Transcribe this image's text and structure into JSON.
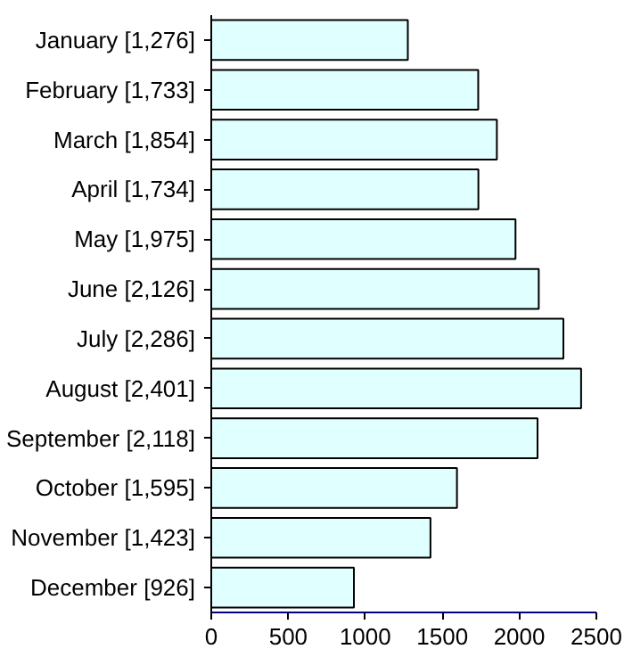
{
  "chart_data": {
    "type": "bar",
    "orientation": "horizontal",
    "categories": [
      "January [1,276]",
      "February [1,733]",
      "March [1,854]",
      "April [1,734]",
      "May [1,975]",
      "June [2,126]",
      "July [2,286]",
      "August [2,401]",
      "September [2,118]",
      "October [1,595]",
      "November [1,423]",
      "December [926]"
    ],
    "values": [
      1276,
      1733,
      1854,
      1734,
      1975,
      2126,
      2286,
      2401,
      2118,
      1595,
      1423,
      926
    ],
    "color": "#e0ffff",
    "xlim": [
      0,
      2500
    ],
    "xticks": [
      0,
      500,
      1000,
      1500,
      2000,
      2500
    ],
    "grid": false
  }
}
